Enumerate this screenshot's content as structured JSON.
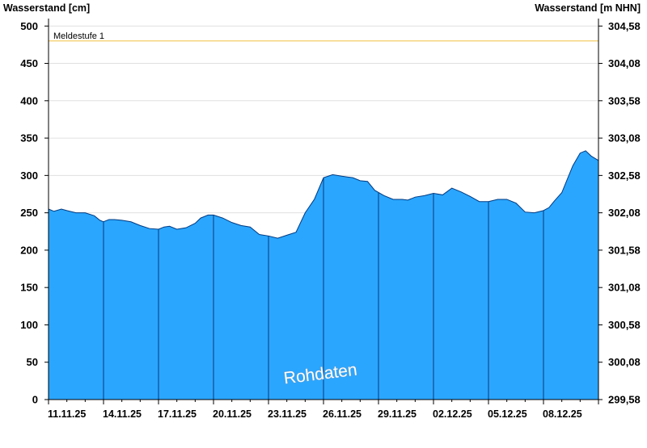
{
  "chart_data": {
    "type": "area",
    "y_left_title": "Wasserstand [cm]",
    "y_right_title": "Wasserstand [m NHN]",
    "ylim": [
      0,
      510
    ],
    "y_ticks": [
      0,
      50,
      100,
      150,
      200,
      250,
      300,
      350,
      400,
      450,
      500
    ],
    "y_right_ticks": [
      "299,58",
      "300,08",
      "300,58",
      "301,08",
      "301,58",
      "302,08",
      "302,58",
      "303,08",
      "303,58",
      "304,08",
      "304,58"
    ],
    "x_ticks": [
      "11.11.25",
      "14.11.25",
      "17.11.25",
      "20.11.25",
      "23.11.25",
      "26.11.25",
      "29.11.25",
      "02.12.25",
      "05.12.25",
      "08.12.25"
    ],
    "x_range_days": [
      0,
      30
    ],
    "threshold": {
      "label": "Meldestufe 1",
      "value": 480,
      "color": "#f0c040"
    },
    "watermark": "Rohdaten",
    "fill_color": "#2aa6ff",
    "line_color": "#003a80",
    "grid": true,
    "series": [
      {
        "x": [
          0,
          0.3,
          0.7,
          1.0,
          1.5,
          2.0,
          2.5,
          2.8,
          3.0,
          3.3,
          3.6,
          4.0,
          4.5,
          5.0,
          5.5,
          6.0,
          6.3,
          6.6,
          7.0,
          7.5,
          8.0,
          8.3,
          8.7,
          9.0,
          9.5,
          10.0,
          10.5,
          11.0,
          11.5,
          12.0,
          12.5,
          13.0,
          13.5,
          14.0,
          14.5,
          15.0,
          15.5,
          16.0,
          16.3,
          16.6,
          17.0,
          17.4,
          17.8,
          18.3,
          18.8,
          19.3,
          19.6,
          20.0,
          20.5,
          21.0,
          21.5,
          22.0,
          22.5,
          23.0,
          23.5,
          24.0,
          24.5,
          25.0,
          25.5,
          26.0,
          26.5,
          27.0,
          27.3,
          27.6,
          28.0,
          28.3,
          28.6,
          29.0,
          29.3,
          29.6,
          30.0
        ],
        "y": [
          255,
          252,
          255,
          253,
          250,
          250,
          246,
          240,
          238,
          241,
          241,
          240,
          238,
          233,
          229,
          228,
          231,
          232,
          228,
          230,
          236,
          243,
          247,
          247,
          243,
          237,
          233,
          231,
          221,
          219,
          216,
          220,
          224,
          250,
          268,
          297,
          301,
          299,
          298,
          297,
          293,
          292,
          280,
          273,
          268,
          268,
          267,
          271,
          273,
          276,
          274,
          283,
          278,
          272,
          265,
          265,
          268,
          268,
          263,
          251,
          250,
          253,
          257,
          266,
          277,
          295,
          313,
          330,
          333,
          326,
          320
        ]
      }
    ]
  }
}
